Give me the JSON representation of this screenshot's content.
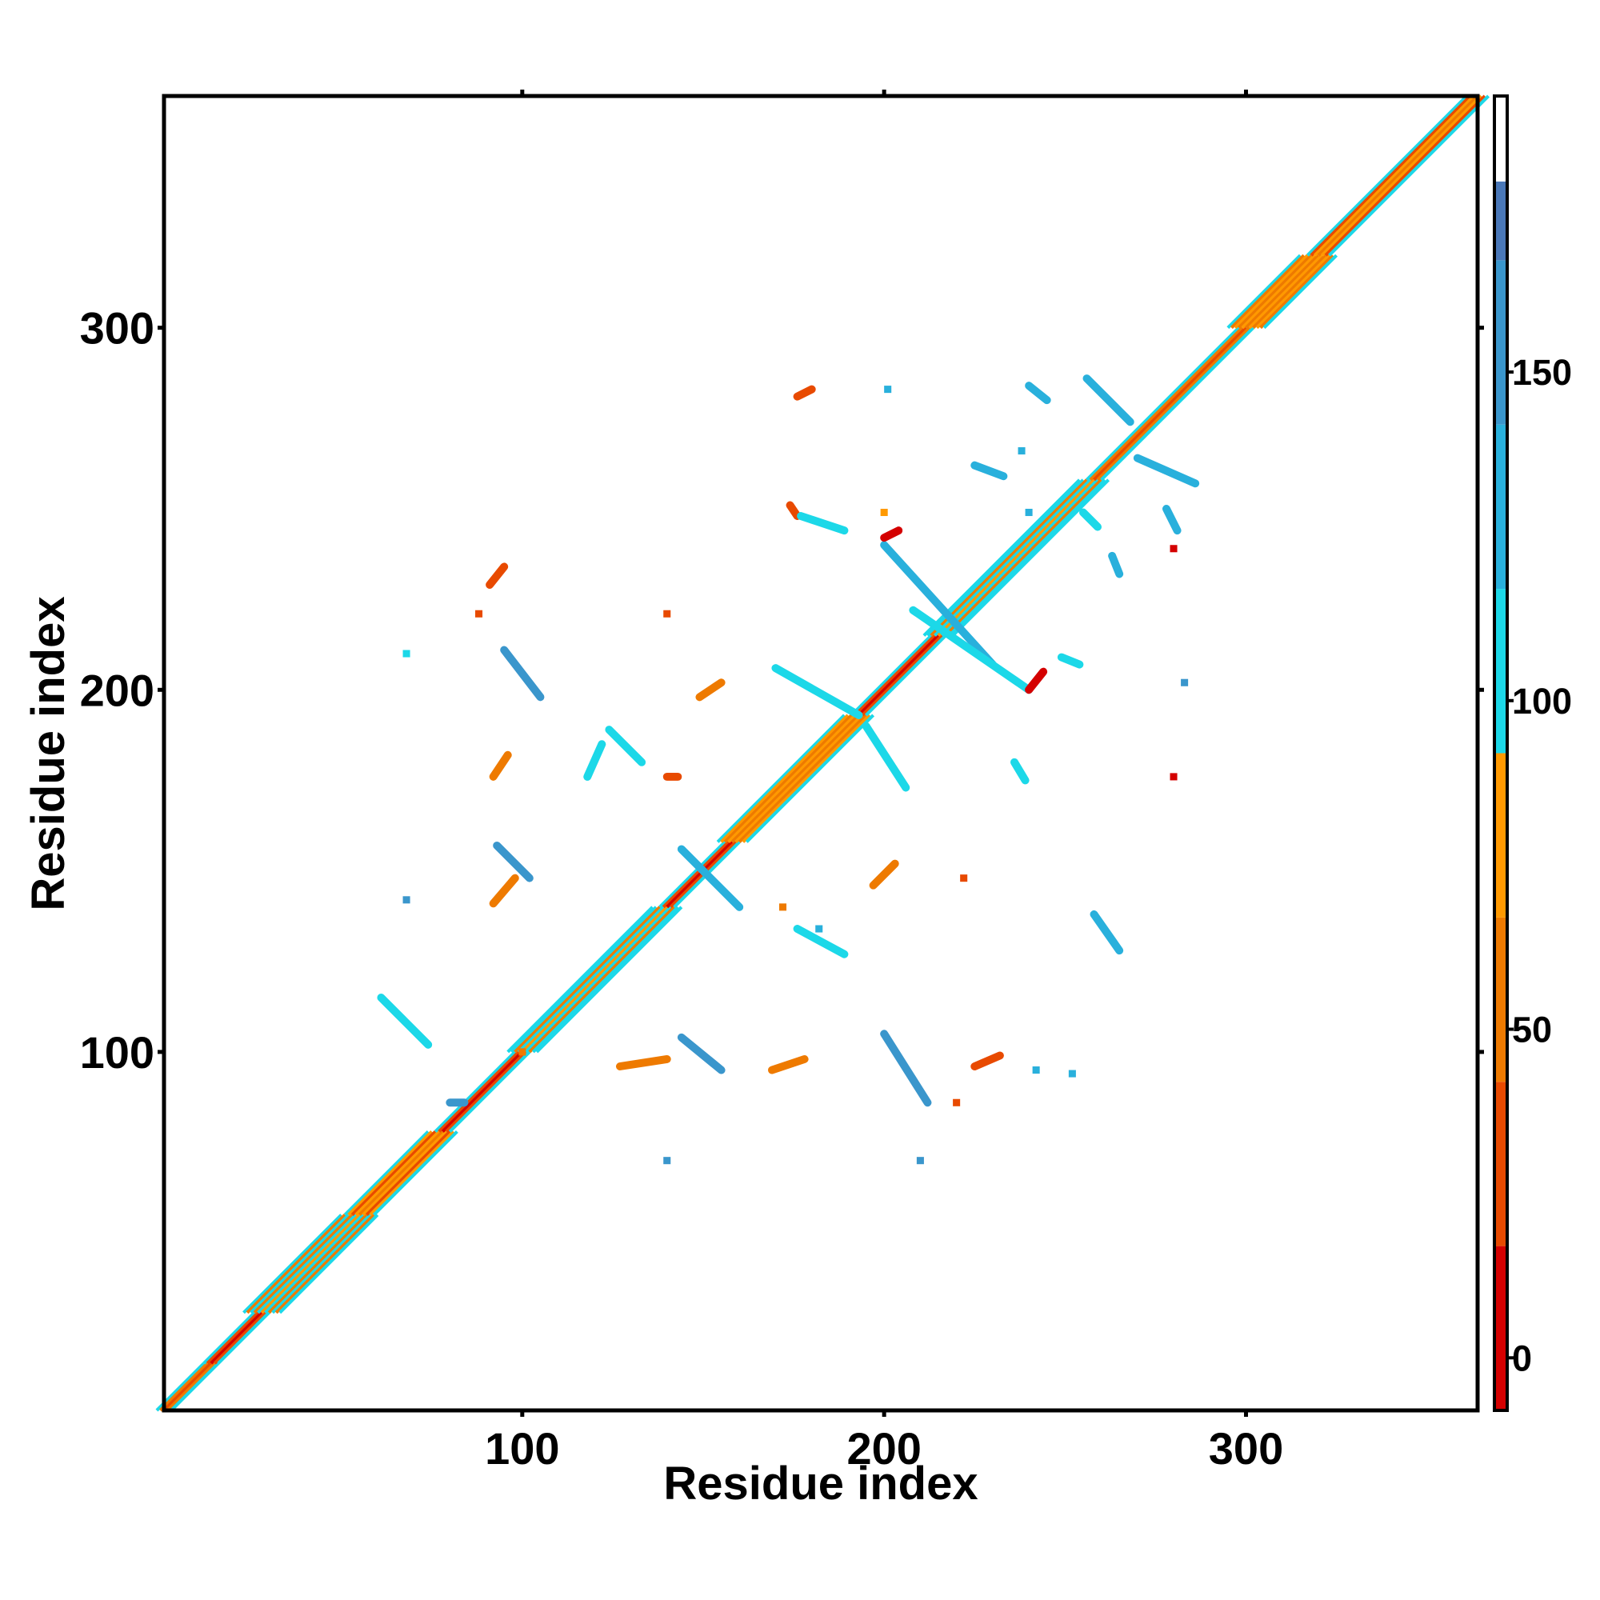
{
  "chart_data": {
    "type": "heatmap",
    "title": "",
    "xlabel": "Residue index",
    "ylabel": "Residue index",
    "xlim": [
      1,
      364
    ],
    "ylim": [
      1,
      364
    ],
    "x_ticks": [
      100,
      200,
      300
    ],
    "y_ticks": [
      100,
      200,
      300
    ],
    "grid": false,
    "colorbar": {
      "location": "right",
      "range": [
        -8,
        192
      ],
      "ticks": [
        0,
        50,
        100,
        150
      ],
      "bands": [
        {
          "from": -8,
          "to": 17,
          "color": "#d40000"
        },
        {
          "from": 17,
          "to": 42,
          "color": "#e84a00"
        },
        {
          "from": 42,
          "to": 67,
          "color": "#ee7a00"
        },
        {
          "from": 67,
          "to": 92,
          "color": "#ff9900"
        },
        {
          "from": 92,
          "to": 117,
          "color": "#1cd8e8"
        },
        {
          "from": 117,
          "to": 142,
          "color": "#29b0dc"
        },
        {
          "from": 142,
          "to": 167,
          "color": "#3a96cc"
        },
        {
          "from": 167,
          "to": 179,
          "color": "#4a78b8"
        },
        {
          "from": 179,
          "to": 192,
          "color": "#ffffff"
        }
      ]
    },
    "diagonal": {
      "from": 1,
      "to": 364,
      "segments": [
        {
          "from": 1,
          "to": 14,
          "width": 2,
          "value": 40
        },
        {
          "from": 14,
          "to": 28,
          "width": 2,
          "value": 5
        },
        {
          "from": 28,
          "to": 55,
          "width": 5,
          "value": 70
        },
        {
          "from": 55,
          "to": 78,
          "width": 4,
          "value": 60
        },
        {
          "from": 78,
          "to": 100,
          "width": 2,
          "value": 5
        },
        {
          "from": 100,
          "to": 140,
          "width": 4,
          "value": 70
        },
        {
          "from": 140,
          "to": 158,
          "width": 2,
          "value": 5
        },
        {
          "from": 158,
          "to": 193,
          "width": 4,
          "value": 65
        },
        {
          "from": 193,
          "to": 215,
          "width": 2,
          "value": 5
        },
        {
          "from": 215,
          "to": 258,
          "width": 4,
          "value": 70
        },
        {
          "from": 258,
          "to": 300,
          "width": 2,
          "value": 30
        },
        {
          "from": 300,
          "to": 320,
          "width": 5,
          "value": 65
        },
        {
          "from": 320,
          "to": 364,
          "width": 3,
          "value": 60
        }
      ]
    },
    "contacts": [
      {
        "x1": 200,
        "y1": 105,
        "x2": 212,
        "y2": 86,
        "value": 150
      },
      {
        "x1": 95,
        "y1": 211,
        "x2": 105,
        "y2": 198,
        "value": 150
      },
      {
        "x1": 144,
        "y1": 156,
        "x2": 160,
        "y2": 140,
        "value": 130
      },
      {
        "x1": 93,
        "y1": 157,
        "x2": 102,
        "y2": 148,
        "value": 150
      },
      {
        "x1": 144,
        "y1": 104,
        "x2": 155,
        "y2": 95,
        "value": 150
      },
      {
        "x1": 200,
        "y1": 240,
        "x2": 230,
        "y2": 207,
        "value": 120
      },
      {
        "x1": 208,
        "y1": 222,
        "x2": 240,
        "y2": 200,
        "value": 115
      },
      {
        "x1": 256,
        "y1": 286,
        "x2": 268,
        "y2": 274,
        "value": 140
      },
      {
        "x1": 270,
        "y1": 264,
        "x2": 286,
        "y2": 257,
        "value": 140
      },
      {
        "x1": 200,
        "y1": 242,
        "x2": 204,
        "y2": 244,
        "value": 5
      },
      {
        "x1": 240,
        "y1": 200,
        "x2": 244,
        "y2": 205,
        "value": 5
      },
      {
        "x1": 92,
        "y1": 176,
        "x2": 96,
        "y2": 182,
        "value": 50
      },
      {
        "x1": 91,
        "y1": 229,
        "x2": 95,
        "y2": 234,
        "value": 40
      },
      {
        "x1": 92,
        "y1": 141,
        "x2": 98,
        "y2": 148,
        "value": 45
      },
      {
        "x1": 169,
        "y1": 95,
        "x2": 178,
        "y2": 98,
        "value": 60
      },
      {
        "x1": 127,
        "y1": 96,
        "x2": 140,
        "y2": 98,
        "value": 50
      },
      {
        "x1": 225,
        "y1": 96,
        "x2": 232,
        "y2": 99,
        "value": 40
      },
      {
        "x1": 240,
        "y1": 284,
        "x2": 245,
        "y2": 280,
        "value": 140
      },
      {
        "x1": 278,
        "y1": 250,
        "x2": 281,
        "y2": 244,
        "value": 140
      },
      {
        "x1": 170,
        "y1": 206,
        "x2": 193,
        "y2": 193,
        "value": 110
      },
      {
        "x1": 195,
        "y1": 190,
        "x2": 206,
        "y2": 173,
        "value": 110
      },
      {
        "x1": 124,
        "y1": 189,
        "x2": 133,
        "y2": 180,
        "value": 110
      },
      {
        "x1": 176,
        "y1": 134,
        "x2": 189,
        "y2": 127,
        "value": 110
      },
      {
        "x1": 225,
        "y1": 262,
        "x2": 233,
        "y2": 259,
        "value": 130
      },
      {
        "x1": 236,
        "y1": 180,
        "x2": 239,
        "y2": 175,
        "value": 110
      },
      {
        "x1": 249,
        "y1": 209,
        "x2": 254,
        "y2": 207,
        "value": 95
      },
      {
        "x1": 263,
        "y1": 237,
        "x2": 265,
        "y2": 232,
        "value": 130
      },
      {
        "x1": 255,
        "y1": 249,
        "x2": 259,
        "y2": 245,
        "value": 105
      },
      {
        "x1": 174,
        "y1": 251,
        "x2": 176,
        "y2": 248,
        "value": 20
      },
      {
        "x1": 177,
        "y1": 248,
        "x2": 189,
        "y2": 244,
        "value": 110
      },
      {
        "x1": 61,
        "y1": 115,
        "x2": 74,
        "y2": 102,
        "value": 110
      },
      {
        "x1": 80,
        "y1": 86,
        "x2": 84,
        "y2": 86,
        "value": 150
      },
      {
        "x1": 176,
        "y1": 281,
        "x2": 180,
        "y2": 283,
        "value": 20
      },
      {
        "x1": 197,
        "y1": 146,
        "x2": 203,
        "y2": 152,
        "value": 50
      },
      {
        "x1": 149,
        "y1": 198,
        "x2": 155,
        "y2": 202,
        "value": 50
      },
      {
        "x1": 140,
        "y1": 176,
        "x2": 143,
        "y2": 176,
        "value": 40
      },
      {
        "x1": 118,
        "y1": 176,
        "x2": 122,
        "y2": 185,
        "value": 115
      },
      {
        "x1": 265,
        "y1": 128,
        "x2": 258,
        "y2": 138,
        "value": 130
      }
    ],
    "points": [
      {
        "x": 100,
        "y": 100,
        "value": 60
      },
      {
        "x": 140,
        "y": 70,
        "value": 150
      },
      {
        "x": 68,
        "y": 142,
        "value": 150
      },
      {
        "x": 210,
        "y": 70,
        "value": 150
      },
      {
        "x": 68,
        "y": 210,
        "value": 110
      },
      {
        "x": 172,
        "y": 140,
        "value": 50
      },
      {
        "x": 140,
        "y": 221,
        "value": 40
      },
      {
        "x": 222,
        "y": 148,
        "value": 40
      },
      {
        "x": 220,
        "y": 86,
        "value": 40
      },
      {
        "x": 283,
        "y": 202,
        "value": 150
      },
      {
        "x": 280,
        "y": 176,
        "value": 5
      },
      {
        "x": 280,
        "y": 239,
        "value": 5
      },
      {
        "x": 252,
        "y": 94,
        "value": 140
      },
      {
        "x": 242,
        "y": 95,
        "value": 120
      },
      {
        "x": 88,
        "y": 221,
        "value": 40
      },
      {
        "x": 201,
        "y": 283,
        "value": 140
      },
      {
        "x": 182,
        "y": 134,
        "value": 130
      },
      {
        "x": 238,
        "y": 266,
        "value": 140
      },
      {
        "x": 240,
        "y": 249,
        "value": 130
      },
      {
        "x": 200,
        "y": 249,
        "value": 70
      }
    ]
  }
}
